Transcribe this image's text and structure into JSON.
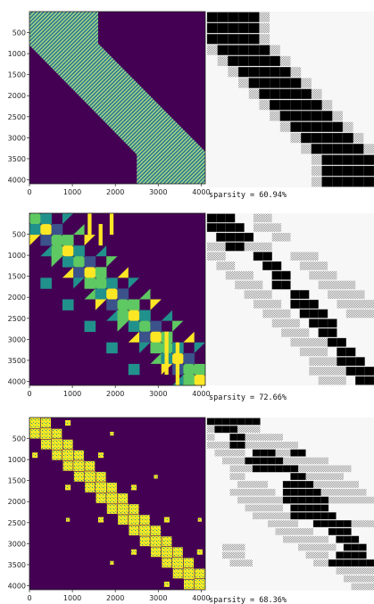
{
  "colors": {
    "background": "#440154",
    "band_fill": "#2a788e",
    "band_stripe": "#b8e186",
    "viridis": [
      "#440154",
      "#3b528b",
      "#21918c",
      "#5ec962",
      "#fde725"
    ],
    "mask_black": "#000000",
    "mask_hatch": "#d9d9d9",
    "mask_bg": "#f7f7f7"
  },
  "chart_data": [
    {
      "type": "heatmap",
      "name": "row-1-attention-matrix",
      "pattern": "diagonal-band",
      "xlim": [
        0,
        4096
      ],
      "ylim": [
        4096,
        0
      ],
      "xticks": [
        "0",
        "1000",
        "2000",
        "3000",
        "4000"
      ],
      "yticks": [
        "500",
        "1000",
        "1500",
        "2000",
        "2500",
        "3000",
        "3500",
        "4000"
      ],
      "band": {
        "top_left_width": 1600,
        "diag_start_row": 800,
        "diag_width": 1600,
        "bottom_start_col": 2500
      }
    },
    {
      "type": "heatmap",
      "name": "row-1-block-mask",
      "blocks": 16,
      "caption": "sparsity = 60.94%",
      "sparsity_percent": 60.94,
      "active_blocks": [
        [
          0,
          0,
          5
        ],
        [
          1,
          0,
          5
        ],
        [
          2,
          0,
          5
        ],
        [
          3,
          1,
          6
        ],
        [
          4,
          2,
          7
        ],
        [
          5,
          3,
          8
        ],
        [
          6,
          4,
          9
        ],
        [
          7,
          5,
          10
        ],
        [
          8,
          6,
          11
        ],
        [
          9,
          7,
          12
        ],
        [
          10,
          8,
          13
        ],
        [
          11,
          9,
          14
        ],
        [
          12,
          10,
          15
        ],
        [
          13,
          11,
          16
        ],
        [
          14,
          11,
          16
        ],
        [
          15,
          11,
          16
        ]
      ],
      "hatched_blocks": [
        [
          0,
          5,
          6
        ],
        [
          1,
          5,
          6
        ],
        [
          2,
          5,
          6
        ],
        [
          3,
          0,
          1
        ],
        [
          3,
          6,
          7
        ],
        [
          4,
          1,
          2
        ],
        [
          4,
          7,
          8
        ],
        [
          5,
          2,
          3
        ],
        [
          5,
          8,
          9
        ],
        [
          6,
          3,
          4
        ],
        [
          6,
          9,
          10
        ],
        [
          7,
          4,
          5
        ],
        [
          7,
          10,
          11
        ],
        [
          8,
          5,
          6
        ],
        [
          8,
          11,
          12
        ],
        [
          9,
          6,
          7
        ],
        [
          9,
          12,
          13
        ],
        [
          10,
          7,
          8
        ],
        [
          10,
          13,
          14
        ],
        [
          11,
          8,
          9
        ],
        [
          11,
          14,
          15
        ],
        [
          12,
          9,
          10
        ],
        [
          12,
          15,
          16
        ],
        [
          13,
          10,
          11
        ],
        [
          14,
          10,
          11
        ],
        [
          15,
          10,
          11
        ]
      ]
    },
    {
      "type": "heatmap",
      "name": "row-2-attention-matrix",
      "pattern": "block-grid",
      "xlim": [
        0,
        4096
      ],
      "ylim": [
        4096,
        0
      ],
      "xticks": [
        "0",
        "1000",
        "2000",
        "3000",
        "4000"
      ],
      "yticks": [
        "500",
        "1000",
        "1500",
        "2000",
        "2500",
        "3000",
        "3500",
        "4000"
      ]
    },
    {
      "type": "heatmap",
      "name": "row-2-block-mask",
      "blocks": 18,
      "caption": "sparsity = 72.66%",
      "sparsity_percent": 72.66,
      "active_blocks": [
        [
          0,
          0,
          3
        ],
        [
          1,
          0,
          4
        ],
        [
          2,
          1,
          5
        ],
        [
          3,
          2,
          4
        ],
        [
          4,
          5,
          7
        ],
        [
          5,
          6,
          8
        ],
        [
          6,
          7,
          9
        ],
        [
          7,
          7,
          9
        ],
        [
          8,
          9,
          11
        ],
        [
          9,
          9,
          12
        ],
        [
          10,
          10,
          13
        ],
        [
          11,
          11,
          14
        ],
        [
          12,
          12,
          14
        ],
        [
          13,
          13,
          15
        ],
        [
          14,
          14,
          16
        ],
        [
          15,
          14,
          17
        ],
        [
          16,
          15,
          18
        ],
        [
          17,
          16,
          18
        ]
      ],
      "hatched_blocks": [
        [
          0,
          5,
          7
        ],
        [
          1,
          5,
          8
        ],
        [
          2,
          7,
          9
        ],
        [
          3,
          0,
          3
        ],
        [
          3,
          4,
          7
        ],
        [
          4,
          0,
          2
        ],
        [
          4,
          9,
          12
        ],
        [
          5,
          1,
          3
        ],
        [
          5,
          10,
          13
        ],
        [
          6,
          2,
          5
        ],
        [
          6,
          11,
          14
        ],
        [
          7,
          3,
          6
        ],
        [
          7,
          12,
          16
        ],
        [
          8,
          4,
          7
        ],
        [
          8,
          13,
          17
        ],
        [
          9,
          5,
          8
        ],
        [
          9,
          14,
          18
        ],
        [
          10,
          6,
          9
        ],
        [
          10,
          15,
          18
        ],
        [
          11,
          7,
          10
        ],
        [
          12,
          8,
          11
        ],
        [
          13,
          9,
          13
        ],
        [
          14,
          10,
          13
        ],
        [
          15,
          11,
          14
        ],
        [
          16,
          11,
          15
        ],
        [
          17,
          12,
          15
        ]
      ]
    },
    {
      "type": "heatmap",
      "name": "row-3-attention-matrix",
      "pattern": "fractal-blocks",
      "xlim": [
        0,
        4096
      ],
      "ylim": [
        4096,
        0
      ],
      "xticks": [
        "0",
        "1000",
        "2000",
        "3000",
        "4000"
      ],
      "yticks": [
        "500",
        "1000",
        "1500",
        "2000",
        "2500",
        "3000",
        "3500",
        "4000"
      ]
    },
    {
      "type": "heatmap",
      "name": "row-3-block-mask",
      "blocks": 22,
      "caption": "sparsity = 68.36%",
      "sparsity_percent": 68.36,
      "active_blocks": [
        [
          0,
          0,
          7
        ],
        [
          1,
          1,
          4
        ],
        [
          2,
          3,
          5
        ],
        [
          3,
          3,
          5
        ],
        [
          4,
          6,
          9
        ],
        [
          4,
          11,
          13
        ],
        [
          5,
          5,
          10
        ],
        [
          6,
          6,
          12
        ],
        [
          7,
          11,
          13
        ],
        [
          8,
          10,
          14
        ],
        [
          9,
          10,
          15
        ],
        [
          10,
          10,
          16
        ],
        [
          11,
          11,
          16
        ],
        [
          12,
          11,
          17
        ],
        [
          13,
          14,
          19
        ],
        [
          14,
          16,
          19
        ],
        [
          15,
          17,
          20
        ],
        [
          16,
          18,
          21
        ],
        [
          17,
          17,
          21
        ],
        [
          18,
          16,
          22
        ]
      ],
      "hatched_blocks": [
        [
          1,
          0,
          1
        ],
        [
          1,
          4,
          7
        ],
        [
          2,
          0,
          1
        ],
        [
          2,
          5,
          10
        ],
        [
          3,
          0,
          3
        ],
        [
          3,
          5,
          12
        ],
        [
          4,
          1,
          5
        ],
        [
          4,
          9,
          11
        ],
        [
          5,
          2,
          5
        ],
        [
          5,
          10,
          16
        ],
        [
          6,
          3,
          6
        ],
        [
          6,
          12,
          19
        ],
        [
          7,
          3,
          5
        ],
        [
          7,
          13,
          18
        ],
        [
          8,
          4,
          8
        ],
        [
          8,
          14,
          20
        ],
        [
          9,
          3,
          9
        ],
        [
          9,
          15,
          21
        ],
        [
          10,
          4,
          10
        ],
        [
          10,
          16,
          22
        ],
        [
          11,
          5,
          10
        ],
        [
          12,
          6,
          11
        ],
        [
          13,
          8,
          12
        ],
        [
          13,
          19,
          22
        ],
        [
          14,
          9,
          14
        ],
        [
          15,
          10,
          16
        ],
        [
          16,
          2,
          5
        ],
        [
          16,
          12,
          17
        ],
        [
          17,
          2,
          5
        ],
        [
          17,
          13,
          16
        ],
        [
          18,
          3,
          6
        ],
        [
          18,
          14,
          16
        ],
        [
          19,
          17,
          22
        ],
        [
          20,
          18,
          22
        ],
        [
          21,
          19,
          22
        ]
      ]
    }
  ]
}
